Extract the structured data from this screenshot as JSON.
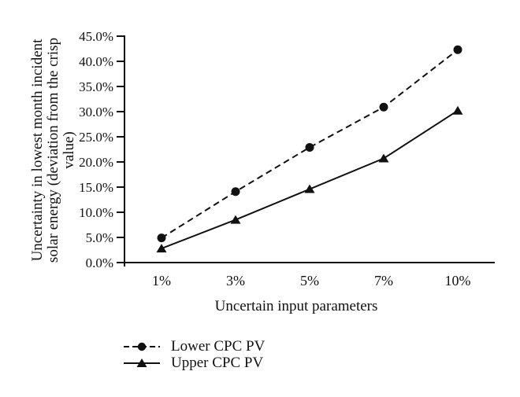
{
  "figure": {
    "background_color": "#ffffff",
    "ink_color": "#111111"
  },
  "chart_data": {
    "type": "line",
    "title": "",
    "xlabel": "Uncertain input parameters",
    "ylabel": "Uncertainty in lowest month incident solar energy (deviation from the crisp value)",
    "ylabel_lines": [
      "Uncertainty in lowest month incident",
      "solar energy (deviation from the crisp",
      "value)"
    ],
    "categories": [
      "1%",
      "3%",
      "5%",
      "7%",
      "10%"
    ],
    "series": [
      {
        "name": "Lower CPC PV",
        "values": [
          4.9,
          14.1,
          22.9,
          30.9,
          42.3
        ],
        "line_style": "dashed",
        "marker": "circle"
      },
      {
        "name": "Upper CPC PV",
        "values": [
          2.8,
          8.5,
          14.6,
          20.7,
          30.2
        ],
        "line_style": "solid",
        "marker": "triangle"
      }
    ],
    "y_axis": {
      "min": 0,
      "max": 45,
      "tick_step": 5,
      "tick_labels": [
        "0.0%",
        "5.0%",
        "10.0%",
        "15.0%",
        "20.0%",
        "25.0%",
        "30.0%",
        "35.0%",
        "40.0%",
        "45.0%"
      ]
    },
    "grid": false,
    "legend_position": "bottom-left",
    "line_color": "#111111"
  }
}
